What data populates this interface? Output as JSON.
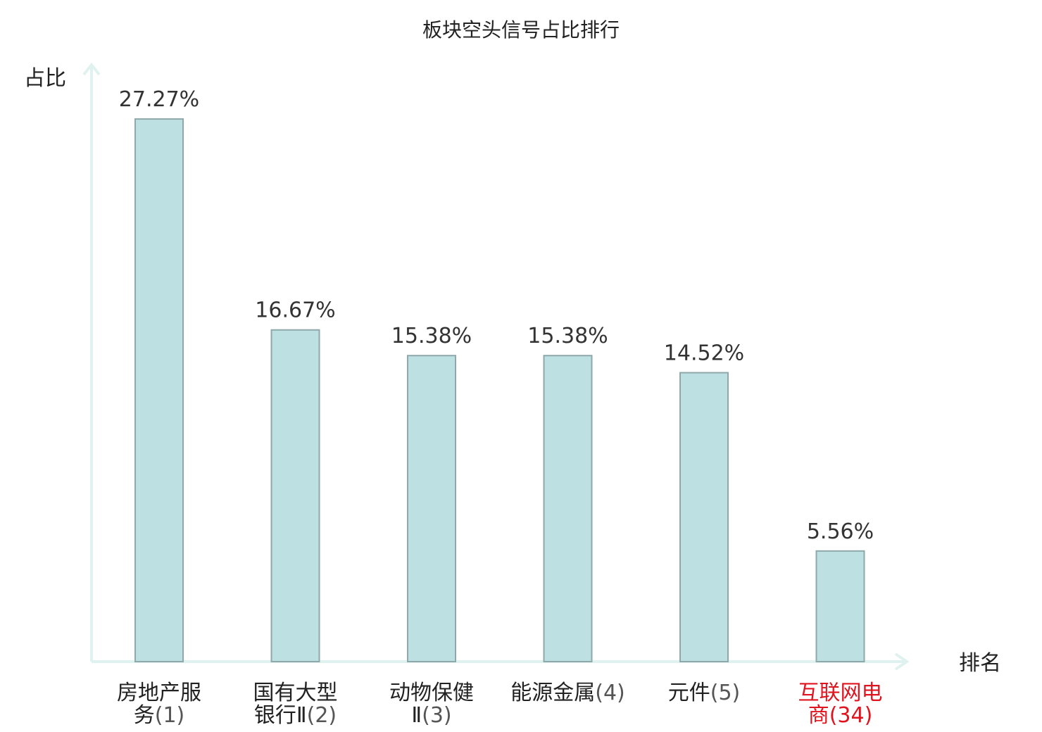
{
  "chart_data": {
    "type": "bar",
    "title": "板块空头信号占比排行",
    "ylabel": "占比",
    "xlabel": "排名",
    "ylim": [
      0,
      30
    ],
    "grid": false,
    "categories": [
      {
        "lines": [
          "房地产服",
          "务"
        ],
        "rank": "(1)",
        "highlight": false
      },
      {
        "lines": [
          "国有大型",
          "银行Ⅱ"
        ],
        "rank": "(2)",
        "highlight": false
      },
      {
        "lines": [
          "动物保健",
          "Ⅱ"
        ],
        "rank": "(3)",
        "highlight": false
      },
      {
        "lines": [
          "能源金属"
        ],
        "rank": "(4)",
        "highlight": false
      },
      {
        "lines": [
          "元件"
        ],
        "rank": "(5)",
        "highlight": false
      },
      {
        "lines": [
          "互联网电",
          "商"
        ],
        "rank": "(34)",
        "highlight": true
      }
    ],
    "values": [
      27.27,
      16.67,
      15.38,
      15.38,
      14.52,
      5.56
    ],
    "value_labels": [
      "27.27%",
      "16.67%",
      "15.38%",
      "15.38%",
      "14.52%",
      "5.56%"
    ],
    "colors": {
      "bar_fill": "#bde0e3",
      "bar_stroke": "#8fa8aa",
      "axis": "#e0f2f0",
      "label_text": "#222222",
      "rank_text": "#555555",
      "highlight_text": "#e0141e"
    }
  }
}
